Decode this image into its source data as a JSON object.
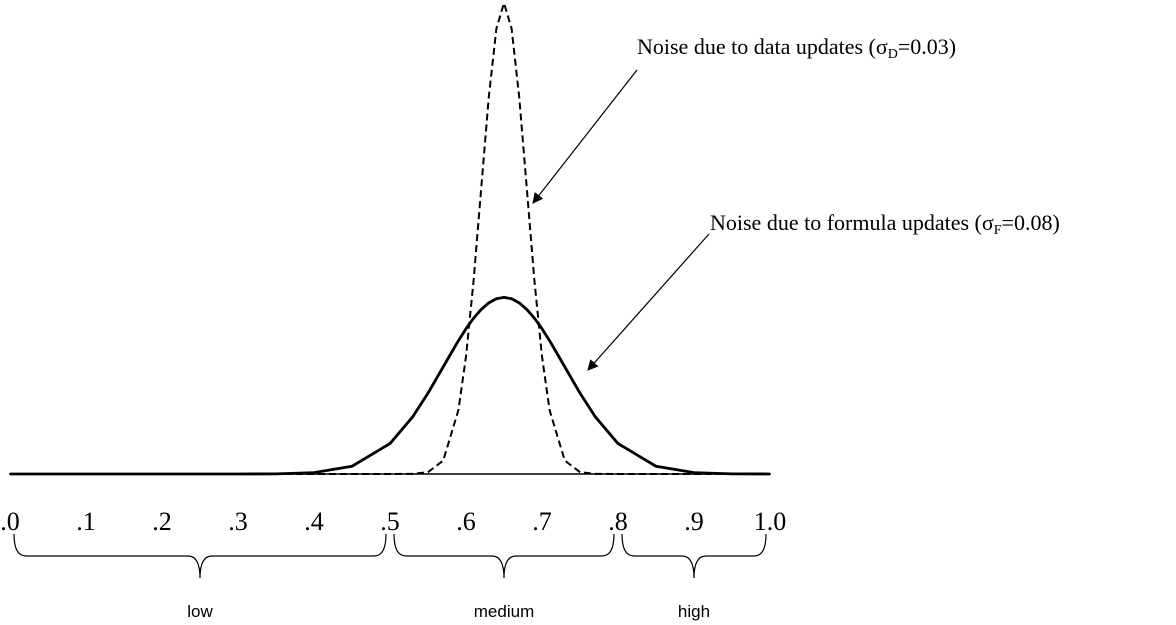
{
  "chart_data": {
    "type": "line",
    "x": [
      0,
      0.1,
      0.2,
      0.3,
      0.35,
      0.4,
      0.45,
      0.5,
      0.53,
      0.55,
      0.57,
      0.59,
      0.6,
      0.61,
      0.62,
      0.63,
      0.64,
      0.65,
      0.66,
      0.67,
      0.68,
      0.69,
      0.7,
      0.71,
      0.73,
      0.75,
      0.77,
      0.8,
      0.85,
      0.9,
      0.95,
      1.0
    ],
    "series": [
      {
        "name": "data updates",
        "color": "#000000",
        "dash": true,
        "values": [
          0,
          0,
          0,
          0,
          0,
          0,
          0,
          0,
          0.0045,
          0.051,
          0.38,
          1.8,
          3.317,
          5.467,
          8.066,
          10.648,
          12.579,
          13.298,
          12.579,
          10.648,
          8.066,
          5.467,
          3.317,
          1.8,
          0.38,
          0.051,
          0.0045,
          0,
          0,
          0,
          0,
          0
        ]
      },
      {
        "name": "formula updates",
        "color": "#000000",
        "dash": false,
        "values": [
          0,
          0,
          0,
          0.0003,
          0.0044,
          0.0377,
          0.219,
          0.86,
          1.619,
          2.283,
          3.025,
          3.764,
          4.102,
          4.401,
          4.648,
          4.833,
          4.948,
          4.987,
          4.948,
          4.833,
          4.648,
          4.401,
          4.102,
          3.764,
          3.025,
          2.283,
          1.619,
          0.86,
          0.219,
          0.0377,
          0.0044,
          0.0003
        ]
      }
    ],
    "xlim": [
      0,
      1
    ],
    "ylim": [
      0,
      13.3
    ],
    "xticks": [
      {
        "value": 0,
        "label": ".0"
      },
      {
        "value": 0.1,
        "label": ".1"
      },
      {
        "value": 0.2,
        "label": ".2"
      },
      {
        "value": 0.3,
        "label": ".3"
      },
      {
        "value": 0.4,
        "label": ".4"
      },
      {
        "value": 0.5,
        "label": ".5"
      },
      {
        "value": 0.6,
        "label": ".6"
      },
      {
        "value": 0.7,
        "label": ".7"
      },
      {
        "value": 0.8,
        "label": ".8"
      },
      {
        "value": 0.9,
        "label": ".9"
      },
      {
        "value": 1.0,
        "label": "1.0"
      }
    ],
    "annotations": [
      {
        "text": "Noise due to data updates (σ",
        "sub": "D",
        "text_after": "=0.03)"
      },
      {
        "text": "Noise due to formula updates (σ",
        "sub": "F",
        "text_after": "=0.08)"
      }
    ],
    "ranges": [
      {
        "label": "low",
        "from": 0,
        "to": 0.5
      },
      {
        "label": "medium",
        "from": 0.5,
        "to": 0.8
      },
      {
        "label": "high",
        "from": 0.8,
        "to": 1.0
      }
    ]
  }
}
